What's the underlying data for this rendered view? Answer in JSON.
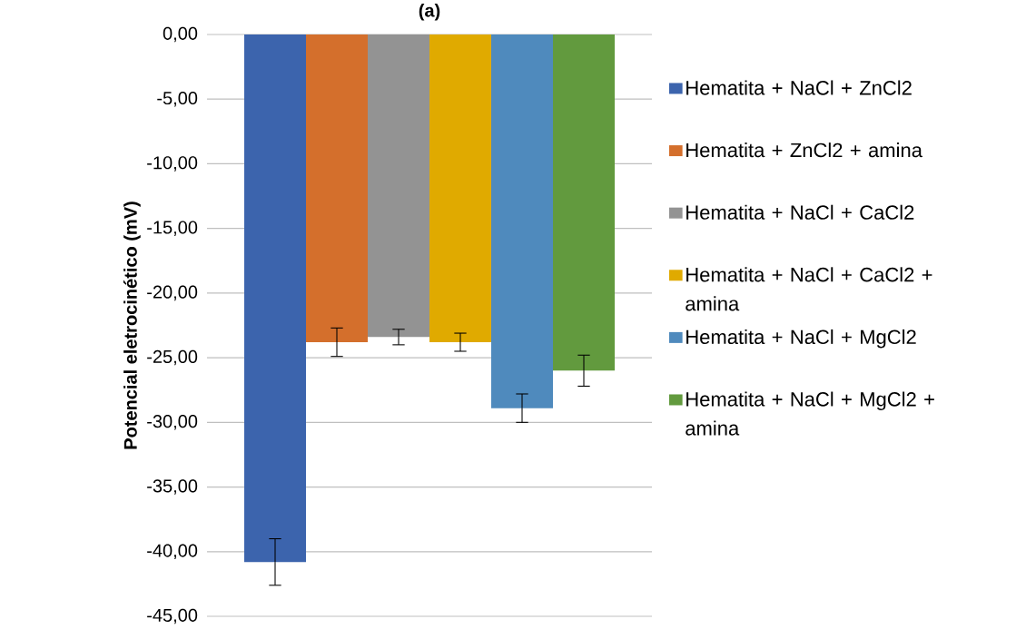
{
  "chart_data": {
    "type": "bar",
    "title": "(a)",
    "ylabel": "Potencial eletrocinético (mV)",
    "categories": [
      null
    ],
    "series": [
      {
        "name": "Hematita + NaCl + ZnCl2",
        "color": "#3c64ad",
        "values": [
          -40.8
        ],
        "errors": [
          1.8
        ]
      },
      {
        "name": "Hematita + ZnCl2  + amina",
        "color": "#d46f2c",
        "values": [
          -23.8
        ],
        "errors": [
          1.1
        ]
      },
      {
        "name": "Hematita + NaCl + CaCl2",
        "color": "#939393",
        "values": [
          -23.4
        ],
        "errors": [
          0.6
        ]
      },
      {
        "name": "Hematita + NaCl + CaCl2 + amina",
        "color": "#e0aa00",
        "values": [
          -23.8
        ],
        "errors": [
          0.7
        ]
      },
      {
        "name": "Hematita + NaCl + MgCl2",
        "color": "#4f8abd",
        "values": [
          -28.9
        ],
        "errors": [
          1.1
        ]
      },
      {
        "name": "Hematita + NaCl + MgCl2 + amina",
        "color": "#629a3e",
        "values": [
          -26.0
        ],
        "errors": [
          1.2
        ]
      }
    ],
    "ylim": [
      -45,
      0
    ],
    "yticks": [
      {
        "value": 0,
        "label": "0,00"
      },
      {
        "value": -5,
        "label": "-5,00"
      },
      {
        "value": -10,
        "label": "-10,00"
      },
      {
        "value": -15,
        "label": "-15,00"
      },
      {
        "value": -20,
        "label": "-20,00"
      },
      {
        "value": -25,
        "label": "-25,00"
      },
      {
        "value": -30,
        "label": "-30,00"
      },
      {
        "value": -35,
        "label": "-35,00"
      },
      {
        "value": -40,
        "label": "-40,00"
      },
      {
        "value": -45,
        "label": "-45,00"
      }
    ],
    "grid": "y",
    "legend": "right"
  }
}
